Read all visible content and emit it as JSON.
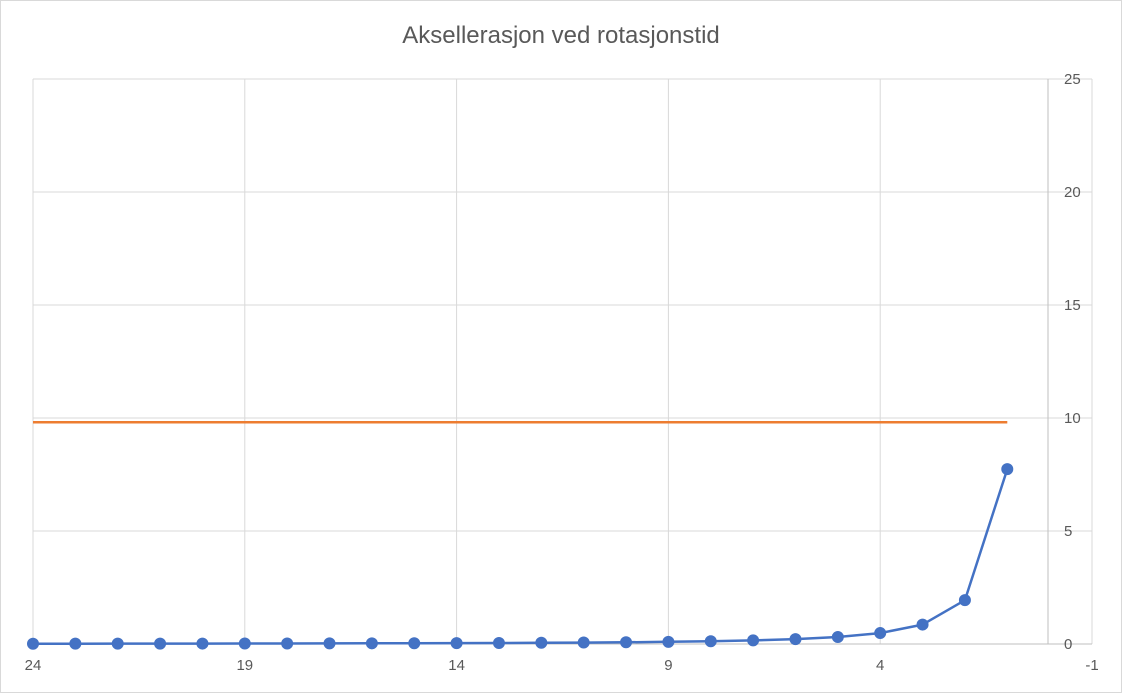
{
  "chart_data": {
    "type": "line",
    "title": "Aksellerasjon ved rotasjonstid",
    "xlabel": "",
    "ylabel": "",
    "xlim": [
      24,
      -1
    ],
    "ylim": [
      0,
      25
    ],
    "x_reversed": true,
    "y_axis_position": "right",
    "grid": true,
    "legend": "none",
    "x_ticks": [
      24,
      19,
      14,
      9,
      4,
      -1
    ],
    "y_ticks": [
      0,
      5,
      10,
      15,
      20,
      25
    ],
    "series": [
      {
        "color": "#4472c4",
        "markers": true,
        "x": [
          24,
          23,
          22,
          21,
          20,
          19,
          18,
          17,
          16,
          15,
          14,
          13,
          12,
          11,
          10,
          9,
          8,
          7,
          6,
          5,
          4,
          3,
          2,
          1
        ],
        "values": [
          0.0134,
          0.0146,
          0.016,
          0.0175,
          0.0193,
          0.0214,
          0.0238,
          0.0267,
          0.0302,
          0.0344,
          0.0395,
          0.0458,
          0.0538,
          0.064,
          0.0774,
          0.0955,
          0.121,
          0.158,
          0.215,
          0.31,
          0.484,
          0.86,
          1.94,
          7.74
        ]
      },
      {
        "color": "#ed7d31",
        "markers": false,
        "x": [
          24,
          1
        ],
        "values": [
          9.81,
          9.81
        ]
      }
    ]
  }
}
